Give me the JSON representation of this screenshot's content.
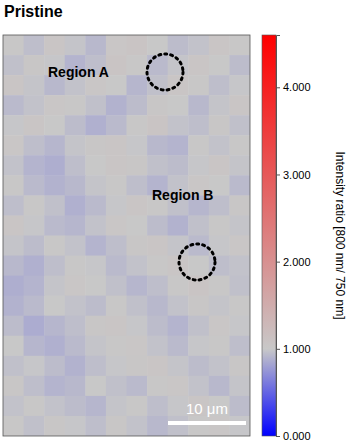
{
  "chart_data": {
    "type": "heatmap",
    "title": "Pristine",
    "annotations": [
      "Region A",
      "Region B"
    ],
    "scale_bar": "10 μm",
    "tick_labels": false,
    "cells": [
      [
        1.02,
        0.95,
        1.05,
        0.98,
        0.92,
        1.04,
        1.08,
        1.0,
        0.94,
        0.97,
        1.06,
        1.01
      ],
      [
        0.96,
        1.03,
        0.99,
        0.9,
        0.95,
        1.07,
        1.02,
        0.93,
        0.98,
        1.05,
        1.0,
        0.94
      ],
      [
        1.05,
        0.98,
        0.92,
        0.97,
        1.04,
        1.0,
        0.91,
        0.96,
        1.06,
        1.02,
        0.95,
        0.99
      ],
      [
        0.93,
        0.97,
        1.04,
        1.01,
        0.96,
        0.89,
        0.94,
        1.03,
        1.0,
        0.92,
        0.98,
        1.05
      ],
      [
        0.99,
        1.06,
        1.0,
        0.94,
        0.88,
        0.93,
        1.02,
        1.07,
        0.97,
        0.95,
        1.03,
        0.96
      ],
      [
        1.04,
        0.95,
        0.91,
        0.98,
        1.03,
        1.05,
        0.99,
        0.92,
        0.9,
        1.01,
        0.97,
        1.02
      ],
      [
        0.97,
        0.9,
        0.87,
        0.95,
        1.0,
        1.06,
        1.03,
        0.96,
        0.94,
        0.99,
        1.05,
        0.98
      ],
      [
        1.01,
        0.93,
        0.89,
        0.92,
        0.98,
        1.02,
        0.95,
        0.9,
        0.97,
        1.04,
        1.0,
        0.93
      ],
      [
        0.95,
        1.02,
        0.96,
        0.88,
        0.93,
        0.99,
        1.05,
        1.01,
        0.96,
        0.91,
        0.95,
        1.03
      ],
      [
        1.06,
        0.99,
        0.93,
        0.91,
        0.97,
        1.04,
        1.0,
        0.94,
        0.89,
        0.96,
        1.02,
        0.98
      ],
      [
        0.98,
        0.94,
        1.01,
        0.97,
        0.9,
        0.95,
        1.03,
        1.06,
        0.98,
        0.93,
        0.99,
        1.04
      ],
      [
        0.92,
        0.88,
        0.95,
        1.02,
        0.99,
        0.93,
        0.97,
        1.01,
        1.05,
        1.0,
        0.95,
        0.97
      ],
      [
        0.87,
        0.9,
        0.98,
        1.04,
        1.0,
        0.96,
        0.91,
        0.95,
        1.02,
        1.07,
        1.01,
        0.96
      ],
      [
        0.89,
        0.93,
        1.0,
        0.97,
        0.94,
        1.01,
        0.96,
        0.92,
        0.97,
        1.03,
        0.98,
        1.02
      ],
      [
        0.94,
        0.86,
        0.91,
        0.95,
        1.03,
        1.05,
        0.99,
        0.94,
        0.9,
        0.96,
        1.04,
        0.99
      ],
      [
        1.0,
        0.91,
        0.88,
        0.93,
        0.98,
        1.02,
        1.04,
        0.97,
        0.93,
        0.99,
        1.01,
        0.95
      ],
      [
        0.96,
        0.99,
        0.94,
        0.89,
        0.95,
        0.99,
        1.03,
        1.06,
        0.98,
        0.94,
        0.97,
        1.03
      ],
      [
        1.03,
        0.95,
        0.9,
        0.92,
        1.0,
        0.96,
        0.93,
        1.01,
        1.04,
        0.97,
        0.92,
        0.98
      ],
      [
        0.97,
        1.02,
        0.97,
        0.94,
        0.91,
        0.98,
        1.02,
        0.95,
        0.99,
        1.05,
        1.0,
        0.94
      ],
      [
        1.01,
        0.96,
        1.03,
        0.99,
        0.95,
        1.03,
        0.97,
        0.92,
        0.96,
        1.01,
        1.04,
        0.99
      ]
    ],
    "colorbar": {
      "label": "Intensity ratio [800 nm/ 750 nm]",
      "range": [
        0,
        4.6
      ],
      "center": 1,
      "ticks": [
        {
          "value": 0,
          "label": "0.000"
        },
        {
          "value": 1,
          "label": "1.000"
        },
        {
          "value": 2,
          "label": "2.000"
        },
        {
          "value": 3,
          "label": "3.000"
        },
        {
          "value": 4,
          "label": "4.000"
        }
      ]
    }
  }
}
